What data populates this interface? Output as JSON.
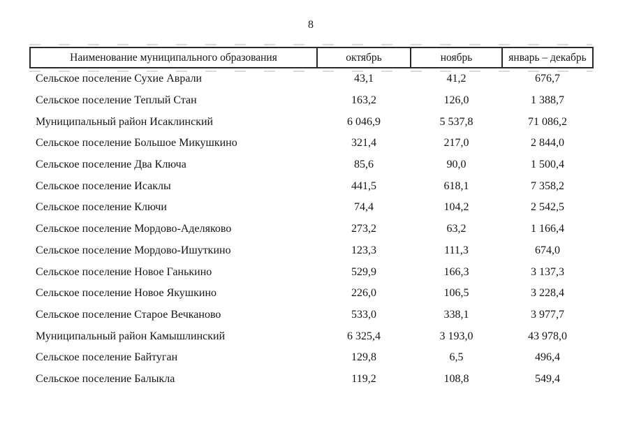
{
  "page": {
    "number": "8"
  },
  "table": {
    "headers": [
      "Наименование муниципального образования",
      "октябрь",
      "ноябрь",
      "январь – декабрь"
    ],
    "rows": [
      {
        "name": "Сельское поселение Сухие Аврали",
        "october": "43,1",
        "november": "41,2",
        "jan_dec": "676,7"
      },
      {
        "name": "Сельское поселение Теплый Стан",
        "october": "163,2",
        "november": "126,0",
        "jan_dec": "1 388,7"
      },
      {
        "name": "Муниципальный район Исаклинский",
        "october": "6 046,9",
        "november": "5 537,8",
        "jan_dec": "71 086,2"
      },
      {
        "name": "Сельское поселение Большое Микушкино",
        "october": "321,4",
        "november": "217,0",
        "jan_dec": "2 844,0"
      },
      {
        "name": "Сельское поселение Два Ключа",
        "october": "85,6",
        "november": "90,0",
        "jan_dec": "1 500,4"
      },
      {
        "name": "Сельское поселение Исаклы",
        "october": "441,5",
        "november": "618,1",
        "jan_dec": "7 358,2"
      },
      {
        "name": "Сельское поселение Ключи",
        "october": "74,4",
        "november": "104,2",
        "jan_dec": "2 542,5"
      },
      {
        "name": "Сельское поселение Мордово-Аделяково",
        "october": "273,2",
        "november": "63,2",
        "jan_dec": "1 166,4"
      },
      {
        "name": "Сельское поселение Мордово-Ишуткино",
        "october": "123,3",
        "november": "111,3",
        "jan_dec": "674,0"
      },
      {
        "name": "Сельское поселение Новое Ганькино",
        "october": "529,9",
        "november": "166,3",
        "jan_dec": "3 137,3"
      },
      {
        "name": "Сельское поселение Новое Якушкино",
        "october": "226,0",
        "november": "106,5",
        "jan_dec": "3 228,4"
      },
      {
        "name": "Сельское поселение Старое Вечканово",
        "october": "533,0",
        "november": "338,1",
        "jan_dec": "3 977,7"
      },
      {
        "name": "Муниципальный район Камышлинский",
        "october": "6 325,4",
        "november": "3 193,0",
        "jan_dec": "43 978,0"
      },
      {
        "name": "Сельское поселение Байтуган",
        "october": "129,8",
        "november": "6,5",
        "jan_dec": "496,4"
      },
      {
        "name": "Сельское поселение Балыкла",
        "october": "119,2",
        "november": "108,8",
        "jan_dec": "549,4"
      }
    ]
  }
}
